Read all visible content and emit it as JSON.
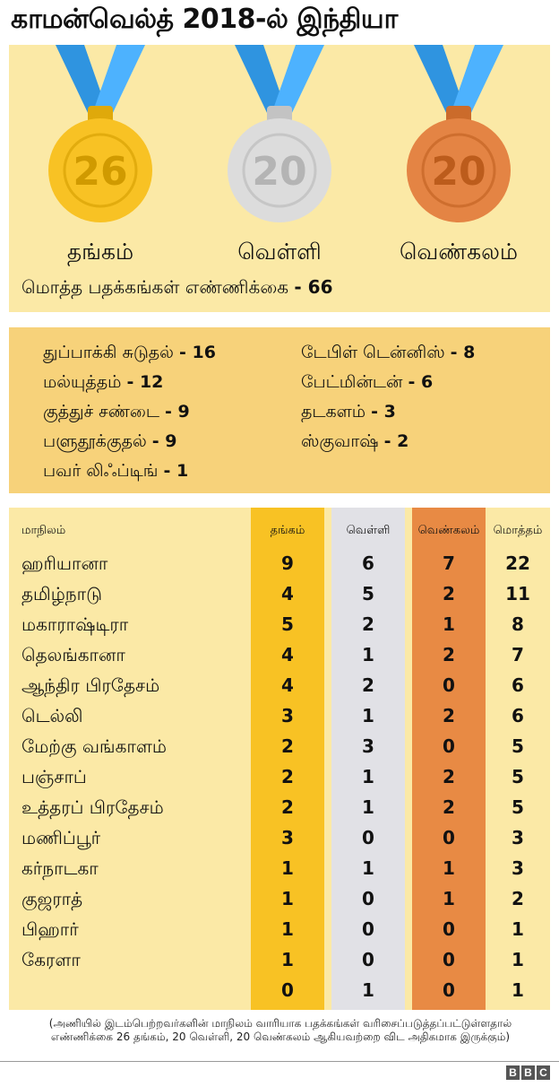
{
  "title": "காமன்வெல்த் 2018-ல் இந்தியா",
  "medals": [
    {
      "label": "தங்கம்",
      "count": "26",
      "color": "#f8c224",
      "ribbon": "#2f94e0"
    },
    {
      "label": "வெள்ளி",
      "count": "20",
      "color": "#dcdcdc",
      "ribbon": "#2f94e0"
    },
    {
      "label": "வெண்கலம்",
      "count": "20",
      "color": "#e48444",
      "ribbon": "#2f94e0"
    }
  ],
  "total": {
    "label": "மொத்த பதக்கங்கள் எண்ணிக்கை",
    "value": "- 66"
  },
  "sports": {
    "left": [
      {
        "name": "துப்பாக்கி சுடுதல்",
        "count": "- 16"
      },
      {
        "name": "மல்யுத்தம்",
        "count": "- 12"
      },
      {
        "name": "குத்துச் சண்டை",
        "count": "- 9"
      },
      {
        "name": "பளுதூக்குதல்",
        "count": "- 9"
      },
      {
        "name": "பவர் லிஃப்டிங்",
        "count": "- 1"
      }
    ],
    "right": [
      {
        "name": "டேபிள் டென்னிஸ்",
        "count": "- 8"
      },
      {
        "name": "பேட்மின்டன்",
        "count": "- 6"
      },
      {
        "name": "தடகளம்",
        "count": "- 3"
      },
      {
        "name": "ஸ்குவாஷ்",
        "count": "- 2"
      }
    ]
  },
  "table": {
    "headers": {
      "state": "மாநிலம்",
      "gold": "தங்கம்",
      "silver": "வெள்ளி",
      "bronze": "வெண்கலம்",
      "total": "மொத்தம்"
    },
    "rows": [
      {
        "state": "ஹரியானா",
        "gold": "9",
        "silver": "6",
        "bronze": "7",
        "total": "22"
      },
      {
        "state": "தமிழ்நாடு",
        "gold": "4",
        "silver": "5",
        "bronze": "2",
        "total": "11"
      },
      {
        "state": "மகாராஷ்டிரா",
        "gold": "5",
        "silver": "2",
        "bronze": "1",
        "total": "8"
      },
      {
        "state": "தெலங்கானா",
        "gold": "4",
        "silver": "1",
        "bronze": "2",
        "total": "7"
      },
      {
        "state": "ஆந்திர பிரதேசம்",
        "gold": "4",
        "silver": "2",
        "bronze": "0",
        "total": "6"
      },
      {
        "state": "டெல்லி",
        "gold": "3",
        "silver": "1",
        "bronze": "2",
        "total": "6"
      },
      {
        "state": "மேற்கு வங்காளம்",
        "gold": "2",
        "silver": "3",
        "bronze": "0",
        "total": "5"
      },
      {
        "state": "பஞ்சாப்",
        "gold": "2",
        "silver": "1",
        "bronze": "2",
        "total": "5"
      },
      {
        "state": "உத்தரப் பிரதேசம்",
        "gold": "2",
        "silver": "1",
        "bronze": "2",
        "total": "5"
      },
      {
        "state": "மணிப்பூர்",
        "gold": "3",
        "silver": "0",
        "bronze": "0",
        "total": "3"
      },
      {
        "state": "கர்நாடகா",
        "gold": "1",
        "silver": "1",
        "bronze": "1",
        "total": "3"
      },
      {
        "state": "குஜராத்",
        "gold": "1",
        "silver": "0",
        "bronze": "1",
        "total": "2"
      },
      {
        "state": "பிஹார்",
        "gold": "1",
        "silver": "0",
        "bronze": "0",
        "total": "1"
      },
      {
        "state": "கேரளா",
        "gold": "1",
        "silver": "0",
        "bronze": "0",
        "total": "1"
      },
      {
        "state": "",
        "gold": "0",
        "silver": "1",
        "bronze": "0",
        "total": "1"
      }
    ]
  },
  "footnote": [
    "(அணியில் இடம்பெற்றவர்களின் மாநிலம் வாரியாக பதக்கங்கள் வரிசைப்படுத்தப்பட்டுள்ளதால்",
    "எண்ணிக்கை 26 தங்கம், 20 வெள்ளி, 20 வெண்கலம் ஆகியவற்றை விட அதிகமாக இருக்கும்)"
  ],
  "logo": "BBC"
}
